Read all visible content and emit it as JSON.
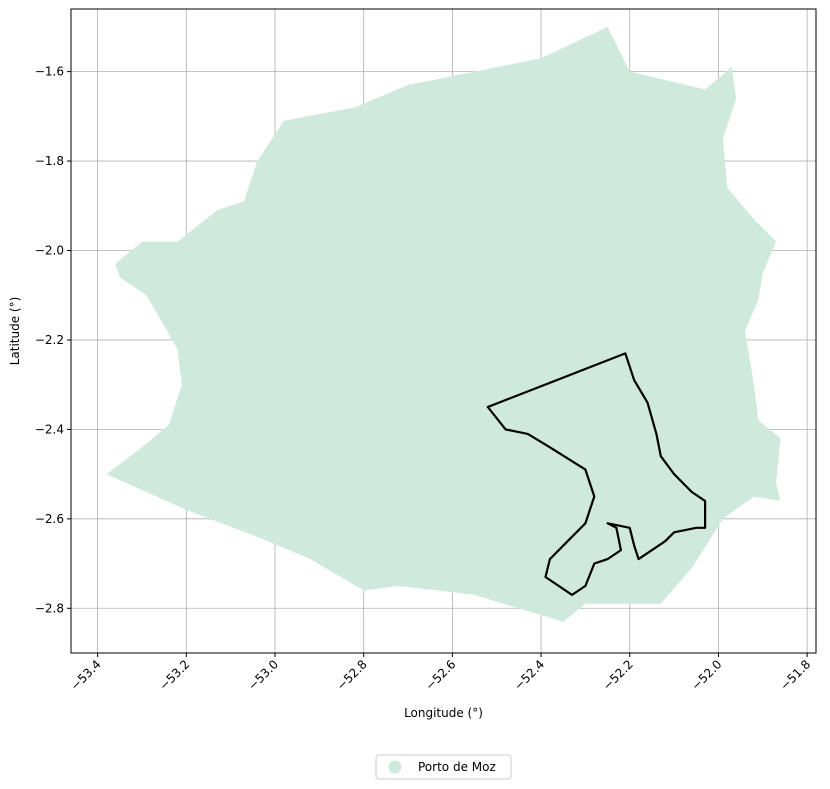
{
  "chart_data": {
    "type": "map",
    "xlabel": "Longitude (°)",
    "ylabel": "Latitude (°)",
    "xlim": [
      -53.46,
      -51.78
    ],
    "ylim": [
      -2.9,
      -1.46
    ],
    "grid": true,
    "x_ticks": [
      -53.4,
      -53.2,
      -53.0,
      -52.8,
      -52.6,
      -52.4,
      -52.2,
      -52.0,
      -51.8
    ],
    "x_tick_labels": [
      "−53.4",
      "−53.2",
      "−53.0",
      "−52.8",
      "−52.6",
      "−52.4",
      "−52.2",
      "−52.0",
      "−51.8"
    ],
    "y_ticks": [
      -1.6,
      -1.8,
      -2.0,
      -2.2,
      -2.4,
      -2.6,
      -2.8
    ],
    "y_tick_labels": [
      "−1.6",
      "−1.8",
      "−2.0",
      "−2.2",
      "−2.4",
      "−2.6",
      "−2.8"
    ],
    "x_tick_rotation_deg": -45,
    "legend_position": "bottom-center",
    "legend": [
      {
        "label": "Porto de Moz",
        "color": "#cfeadc"
      }
    ],
    "colors": {
      "region_fill": "#cfeadc",
      "outline": "#000000",
      "grid": "#b0b0b0"
    },
    "region": {
      "name": "Porto de Moz",
      "polygon": [
        [
          -53.38,
          -2.5
        ],
        [
          -53.3,
          -2.44
        ],
        [
          -53.24,
          -2.39
        ],
        [
          -53.21,
          -2.3
        ],
        [
          -53.22,
          -2.22
        ],
        [
          -53.29,
          -2.1
        ],
        [
          -53.35,
          -2.06
        ],
        [
          -53.36,
          -2.03
        ],
        [
          -53.3,
          -1.98
        ],
        [
          -53.22,
          -1.98
        ],
        [
          -53.13,
          -1.91
        ],
        [
          -53.07,
          -1.89
        ],
        [
          -53.04,
          -1.8
        ],
        [
          -52.98,
          -1.71
        ],
        [
          -52.82,
          -1.68
        ],
        [
          -52.7,
          -1.63
        ],
        [
          -52.55,
          -1.6
        ],
        [
          -52.4,
          -1.57
        ],
        [
          -52.25,
          -1.5
        ],
        [
          -52.2,
          -1.6
        ],
        [
          -52.03,
          -1.64
        ],
        [
          -51.97,
          -1.59
        ],
        [
          -51.96,
          -1.66
        ],
        [
          -51.99,
          -1.75
        ],
        [
          -51.98,
          -1.86
        ],
        [
          -51.92,
          -1.93
        ],
        [
          -51.87,
          -1.98
        ],
        [
          -51.9,
          -2.05
        ],
        [
          -51.91,
          -2.11
        ],
        [
          -51.94,
          -2.18
        ],
        [
          -51.92,
          -2.3
        ],
        [
          -51.91,
          -2.38
        ],
        [
          -51.86,
          -2.42
        ],
        [
          -51.87,
          -2.52
        ],
        [
          -51.86,
          -2.56
        ],
        [
          -51.92,
          -2.55
        ],
        [
          -51.99,
          -2.6
        ],
        [
          -52.06,
          -2.71
        ],
        [
          -52.13,
          -2.79
        ],
        [
          -52.3,
          -2.79
        ],
        [
          -52.35,
          -2.83
        ],
        [
          -52.55,
          -2.77
        ],
        [
          -52.72,
          -2.75
        ],
        [
          -52.8,
          -2.76
        ],
        [
          -52.92,
          -2.69
        ],
        [
          -53.04,
          -2.64
        ],
        [
          -53.2,
          -2.58
        ],
        [
          -53.38,
          -2.5
        ]
      ]
    },
    "outline": {
      "polygon": [
        [
          -52.52,
          -2.35
        ],
        [
          -52.21,
          -2.23
        ],
        [
          -52.19,
          -2.29
        ],
        [
          -52.16,
          -2.34
        ],
        [
          -52.14,
          -2.41
        ],
        [
          -52.13,
          -2.46
        ],
        [
          -52.1,
          -2.5
        ],
        [
          -52.06,
          -2.54
        ],
        [
          -52.03,
          -2.56
        ],
        [
          -52.03,
          -2.62
        ],
        [
          -52.05,
          -2.62
        ],
        [
          -52.1,
          -2.63
        ],
        [
          -52.12,
          -2.65
        ],
        [
          -52.18,
          -2.69
        ],
        [
          -52.19,
          -2.66
        ],
        [
          -52.2,
          -2.62
        ],
        [
          -52.25,
          -2.61
        ],
        [
          -52.23,
          -2.62
        ],
        [
          -52.22,
          -2.67
        ],
        [
          -52.25,
          -2.69
        ],
        [
          -52.28,
          -2.7
        ],
        [
          -52.3,
          -2.75
        ],
        [
          -52.33,
          -2.77
        ],
        [
          -52.39,
          -2.73
        ],
        [
          -52.38,
          -2.69
        ],
        [
          -52.35,
          -2.66
        ],
        [
          -52.3,
          -2.61
        ],
        [
          -52.28,
          -2.55
        ],
        [
          -52.3,
          -2.49
        ],
        [
          -52.38,
          -2.44
        ],
        [
          -52.43,
          -2.41
        ],
        [
          -52.48,
          -2.4
        ],
        [
          -52.52,
          -2.35
        ]
      ]
    }
  }
}
